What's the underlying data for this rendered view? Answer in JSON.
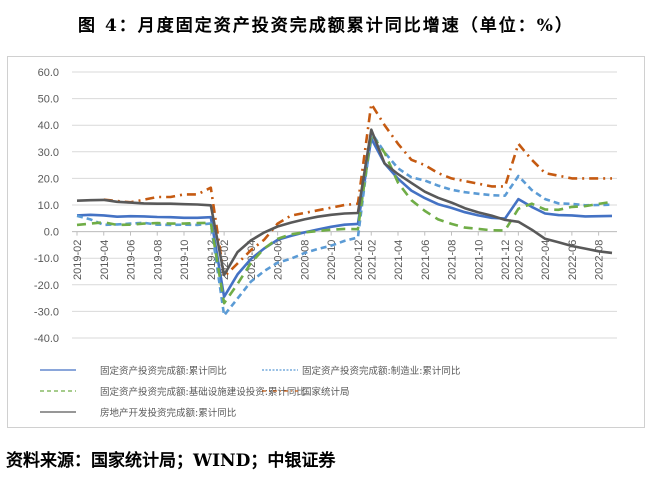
{
  "title": "图 4：月度固定资产投资完成额累计同比增速（单位：%）",
  "source": "资料来源：国家统计局；WIND；中银证券",
  "chart_data": {
    "type": "line",
    "title": "图 4：月度固定资产投资完成额累计同比增速（单位：%）",
    "xlabel": "",
    "ylabel": "",
    "ylim": [
      -40,
      60
    ],
    "yticks": [
      "60.0",
      "50.0",
      "40.0",
      "30.0",
      "20.0",
      "10.0",
      "0.0",
      "-10.0",
      "-20.0",
      "-30.0",
      "-40.0"
    ],
    "grid": true,
    "legend_position": "bottom",
    "x": [
      "2019-02",
      "2019-03",
      "2019-04",
      "2019-05",
      "2019-06",
      "2019-07",
      "2019-08",
      "2019-09",
      "2019-10",
      "2019-11",
      "2019-12",
      "2020-02",
      "2020-03",
      "2020-04",
      "2020-05",
      "2020-06",
      "2020-07",
      "2020-08",
      "2020-09",
      "2020-10",
      "2020-11",
      "2020-12",
      "2021-02",
      "2021-03",
      "2021-04",
      "2021-05",
      "2021-06",
      "2021-07",
      "2021-08",
      "2021-09",
      "2021-10",
      "2021-11",
      "2021-12",
      "2022-02",
      "2022-03",
      "2022-04",
      "2022-05",
      "2022-06",
      "2022-07",
      "2022-08",
      "2022-09"
    ],
    "xticks": [
      "2019-02",
      "2019-04",
      "2019-06",
      "2019-08",
      "2019-10",
      "2019-12",
      "2020-02",
      "2020-04",
      "2020-06",
      "2020-08",
      "2020-10",
      "2020-12",
      "2021-02",
      "2021-04",
      "2021-06",
      "2021-08",
      "2021-10",
      "2021-12",
      "2022-02",
      "2022-04",
      "2022-06",
      "2022-08"
    ],
    "series": [
      {
        "name": "固定资产投资完成额:累计同比",
        "color": "#4472c4",
        "style": "solid",
        "values": [
          6.1,
          6.3,
          6.1,
          5.6,
          5.8,
          5.7,
          5.5,
          5.4,
          5.2,
          5.2,
          5.4,
          -24.5,
          -16.1,
          -10.3,
          -6.3,
          -3.1,
          -1.6,
          -0.3,
          0.8,
          1.8,
          2.6,
          2.9,
          35.0,
          25.6,
          19.9,
          15.4,
          12.6,
          10.3,
          8.9,
          7.3,
          6.1,
          5.2,
          4.9,
          12.2,
          9.3,
          6.8,
          6.2,
          6.1,
          5.7,
          5.8,
          5.9
        ]
      },
      {
        "name": "固定资产投资完成额:制造业:累计同比",
        "color": "#5b9bd5",
        "style": "dash",
        "values": [
          5.9,
          4.6,
          2.5,
          2.7,
          3.0,
          3.3,
          2.6,
          2.5,
          2.6,
          2.5,
          3.1,
          -31.5,
          -25.2,
          -18.8,
          -14.8,
          -11.7,
          -10.2,
          -8.1,
          -6.5,
          -5.3,
          -3.5,
          -2.2,
          37.3,
          29.8,
          23.8,
          20.4,
          19.2,
          17.3,
          15.7,
          14.8,
          14.2,
          13.7,
          13.5,
          20.9,
          15.6,
          12.2,
          10.6,
          10.4,
          9.9,
          10.0,
          10.1
        ]
      },
      {
        "name": "固定资产投资完成额:基础设施建设投资:累计同比",
        "color": "#70ad47",
        "style": "longdash",
        "values": [
          2.5,
          3.0,
          3.5,
          2.5,
          2.6,
          3.0,
          3.2,
          3.0,
          3.0,
          3.2,
          3.3,
          -26.9,
          -19.7,
          -11.8,
          -6.3,
          -2.7,
          -1.0,
          -0.3,
          0.2,
          0.7,
          1.0,
          0.9,
          36.6,
          29.7,
          18.4,
          11.8,
          7.8,
          4.6,
          2.9,
          1.5,
          1.0,
          0.5,
          0.4,
          8.6,
          10.5,
          8.3,
          8.2,
          9.3,
          9.6,
          10.4,
          11.2
        ]
      },
      {
        "name": "国家统计局",
        "color": "#c55a11",
        "style": "dashdot",
        "values": [
          null,
          null,
          12.0,
          11.5,
          11.0,
          12.0,
          13.0,
          13.0,
          14.0,
          14.0,
          16.5,
          -17.0,
          -12.0,
          -7.0,
          -3.0,
          3.0,
          6.0,
          7.0,
          8.0,
          9.0,
          10.0,
          10.5,
          48.0,
          40.0,
          33.0,
          27.0,
          25.0,
          22.0,
          20.0,
          19.0,
          18.0,
          17.0,
          17.0,
          33.0,
          27.0,
          22.0,
          21.0,
          20.0,
          20.0,
          20.0,
          20.0
        ]
      },
      {
        "name": "房地产开发投资完成额:累计同比",
        "color": "#595959",
        "style": "solid",
        "values": [
          11.6,
          11.8,
          11.9,
          11.2,
          10.9,
          10.6,
          10.5,
          10.5,
          10.3,
          10.2,
          9.9,
          -16.3,
          -7.7,
          -3.3,
          -0.3,
          1.9,
          3.4,
          4.6,
          5.6,
          6.3,
          6.8,
          7.0,
          38.3,
          25.6,
          21.6,
          18.3,
          15.0,
          12.7,
          10.9,
          8.8,
          7.2,
          6.0,
          4.4,
          3.7,
          0.7,
          -2.7,
          -4.0,
          -5.4,
          -6.4,
          -7.4,
          -8.0
        ]
      }
    ]
  }
}
